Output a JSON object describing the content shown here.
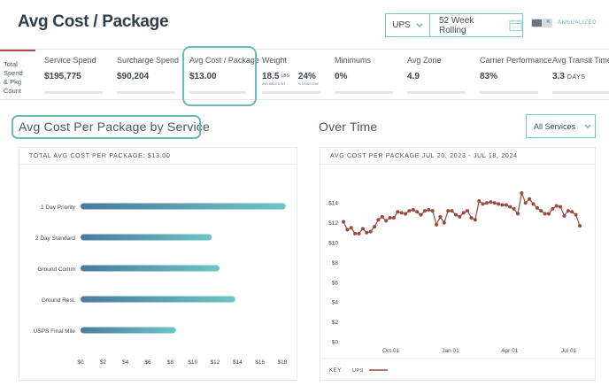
{
  "header": {
    "title": "Avg Cost / Package",
    "carrier": "UPS",
    "period": "52 Week Rolling",
    "annualized_label": "ANNUALIZED"
  },
  "kpis": {
    "total_label": [
      "Total",
      "Spend",
      "& Pkg",
      "Count"
    ],
    "service_spend": {
      "label": "Service Spend",
      "value": "$195,775"
    },
    "surcharge_spend": {
      "label": "Surcharge Spend",
      "value": "$90,204"
    },
    "avg_cost": {
      "label": "Avg Cost / Package",
      "value": "$13.00"
    },
    "weight": {
      "label": "Weight",
      "billed": "18.5",
      "billed_unit": "LBS",
      "billed_caption": "AVG BILLED WT",
      "dim_pct": "24%",
      "dim_caption": "% USING DIM"
    },
    "minimums": {
      "label": "Minimums",
      "value": "0%"
    },
    "avg_zone": {
      "label": "Avg Zone",
      "value": "4.9"
    },
    "carrier_performance": {
      "label": "Carrier Performance",
      "value": "83%"
    },
    "avg_transit": {
      "label": "Avg Transit Time",
      "value": "3.3",
      "unit": "DAYS"
    }
  },
  "left_section": {
    "title": "Avg Cost Per Package by Service",
    "card_header": "TOTAL AVG COST PER PACKAGE: $13.00"
  },
  "right_section": {
    "title": "Over Time",
    "filter": "All Services",
    "card_header": "AVG COST PER PACKAGE JUL 20, 2023 - JUL 18, 2024",
    "legend_key": "KEY",
    "legend_series": "UPS"
  },
  "colors": {
    "accent": "#6ab9b6",
    "bar_start": "#4a7aa0",
    "bar_end": "#6cc6c4",
    "line": "#9a4a3e"
  },
  "chart_data": [
    {
      "type": "bar",
      "orientation": "horizontal",
      "categories": [
        "1 Day Priority",
        "2 Day Standard",
        "Ground Comm",
        "Ground Resi.",
        "USPS Final Mile"
      ],
      "values": [
        18.3,
        11.7,
        12.4,
        13.8,
        8.5
      ],
      "xlim": [
        0,
        18
      ],
      "xticks": [
        "$0",
        "$2",
        "$4",
        "$6",
        "$8",
        "$10",
        "$12",
        "$14",
        "$16",
        "$18"
      ],
      "grid": false
    },
    {
      "type": "line",
      "x_start": "2023-07-20",
      "x_end": "2024-07-18",
      "xticks": [
        "Oct 01",
        "Jan 01",
        "Apr 01",
        "Jul 01"
      ],
      "yticks": [
        "$0",
        "$2",
        "$4",
        "$6",
        "$8",
        "$10",
        "$12",
        "$14"
      ],
      "ylim": [
        0,
        15
      ],
      "series": [
        {
          "name": "UPS",
          "values": [
            12.1,
            11.3,
            11.5,
            10.9,
            10.9,
            11.4,
            11.0,
            11.1,
            11.6,
            12.3,
            12.6,
            12.2,
            12.5,
            12.5,
            13.1,
            13.0,
            12.9,
            13.2,
            13.3,
            13.1,
            12.8,
            13.2,
            13.3,
            13.2,
            11.8,
            12.6,
            12.0,
            13.2,
            13.2,
            12.8,
            12.6,
            13.0,
            13.2,
            12.5,
            12.3,
            14.2,
            13.9,
            14.0,
            14.1,
            14.0,
            13.9,
            13.8,
            13.8,
            13.6,
            13.4,
            12.9,
            15.0,
            14.0,
            14.4,
            13.9,
            13.5,
            13.2,
            12.9,
            12.9,
            13.4,
            13.7,
            13.6,
            12.7,
            13.2,
            13.1,
            12.8,
            11.7
          ]
        }
      ]
    }
  ]
}
